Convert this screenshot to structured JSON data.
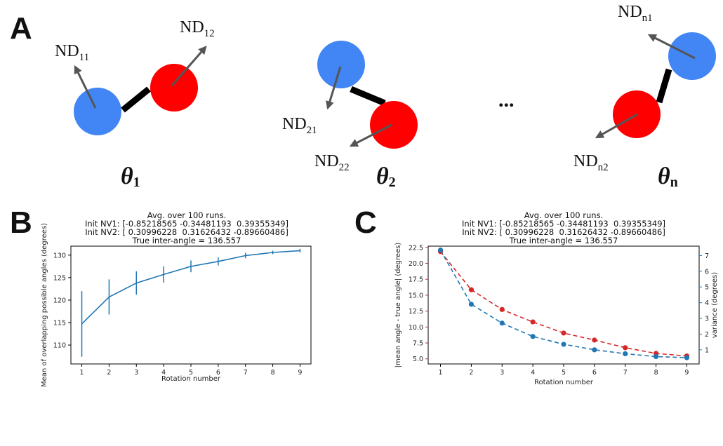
{
  "panel_a": {
    "letter": "A",
    "ellipsis": "...",
    "colors": {
      "blue": "#4285f4",
      "red": "#ff0000",
      "bond": "#000000",
      "arrow": "#555555"
    },
    "molecules": [
      {
        "theta_main": "θ",
        "theta_sub": "1",
        "labels": [
          {
            "main": "ND",
            "sub": "11"
          },
          {
            "main": "ND",
            "sub": "12"
          }
        ]
      },
      {
        "theta_main": "θ",
        "theta_sub": "2",
        "labels": [
          {
            "main": "ND",
            "sub": "21"
          },
          {
            "main": "ND",
            "sub": "22"
          }
        ]
      },
      {
        "theta_main": "θ",
        "theta_sub": "n",
        "labels": [
          {
            "main": "ND",
            "sub": "n1"
          },
          {
            "main": "ND",
            "sub": "n2"
          }
        ]
      }
    ]
  },
  "panel_b": {
    "letter": "B",
    "title_lines": [
      "Avg. over 100 runs.",
      "Init NV1: [-0.85218565 -0.34481193  0.39355349]",
      "Init NV2: [ 0.30996228  0.31626432 -0.89660486]",
      "True inter-angle = 136.557"
    ]
  },
  "panel_c": {
    "letter": "C",
    "title_lines": [
      "Avg. over 100 runs.",
      "Init NV1: [-0.85218565 -0.34481193  0.39355349]",
      "Init NV2: [ 0.30996228  0.31626432 -0.89660486]",
      "True inter-angle = 136.557"
    ]
  },
  "chart_data": [
    {
      "type": "line",
      "panel": "B",
      "title": "Avg. over 100 runs.\nInit NV1: [-0.85218565 -0.34481193  0.39355349]\nInit NV2: [ 0.30996228  0.31626432 -0.89660486]\nTrue inter-angle = 136.557",
      "xlabel": "Rotation number",
      "ylabel": "Mean of overlapping possible angles (degrees)",
      "x": [
        1,
        2,
        3,
        4,
        5,
        6,
        7,
        8,
        9
      ],
      "xticks": [
        "1",
        "2",
        "3",
        "4",
        "5",
        "6",
        "7",
        "8",
        "9"
      ],
      "yticks": [
        "110",
        "115",
        "120",
        "125",
        "130"
      ],
      "ylim": [
        105.8,
        132.0
      ],
      "xlim": [
        0.6,
        9.4
      ],
      "series": [
        {
          "values": [
            114.7,
            120.7,
            123.8,
            125.7,
            127.5,
            128.6,
            129.9,
            130.6,
            131.0
          ],
          "errors": [
            7.3,
            3.9,
            2.6,
            1.8,
            1.3,
            0.9,
            0.6,
            0.4,
            0.4
          ],
          "color": "#1f77b4",
          "style": "solid",
          "markers": false
        }
      ],
      "grid": false
    },
    {
      "type": "line",
      "panel": "C",
      "title": "Avg. over 100 runs.\nInit NV1: [-0.85218565 -0.34481193  0.39355349]\nInit NV2: [ 0.30996228  0.31626432 -0.89660486]\nTrue inter-angle = 136.557",
      "xlabel": "Rotation number",
      "ylabel": "|mean angle - true angle| (degrees)",
      "ylabel_right": "variance (degrees)",
      "x": [
        1,
        2,
        3,
        4,
        5,
        6,
        7,
        8,
        9
      ],
      "xticks": [
        "1",
        "2",
        "3",
        "4",
        "5",
        "6",
        "7",
        "8",
        "9"
      ],
      "yticks_left": [
        "5.0",
        "7.5",
        "10.0",
        "12.5",
        "15.0",
        "17.5",
        "20.0",
        "22.5"
      ],
      "yticks_right": [
        "1",
        "2",
        "3",
        "4",
        "5",
        "6",
        "7"
      ],
      "ylim_left": [
        4.2,
        22.7
      ],
      "ylim_right": [
        0.1,
        7.6
      ],
      "xlim": [
        0.6,
        9.4
      ],
      "series": [
        {
          "axis": "left",
          "values": [
            21.85,
            15.85,
            12.75,
            10.8,
            9.05,
            7.95,
            6.75,
            5.85,
            5.45
          ],
          "color": "#d62728",
          "style": "dashed",
          "markers": true
        },
        {
          "axis": "right",
          "values": [
            7.35,
            3.9,
            2.7,
            1.85,
            1.35,
            1.0,
            0.75,
            0.57,
            0.5
          ],
          "color": "#1f77b4",
          "style": "dashed",
          "markers": true
        }
      ],
      "grid": false
    }
  ]
}
